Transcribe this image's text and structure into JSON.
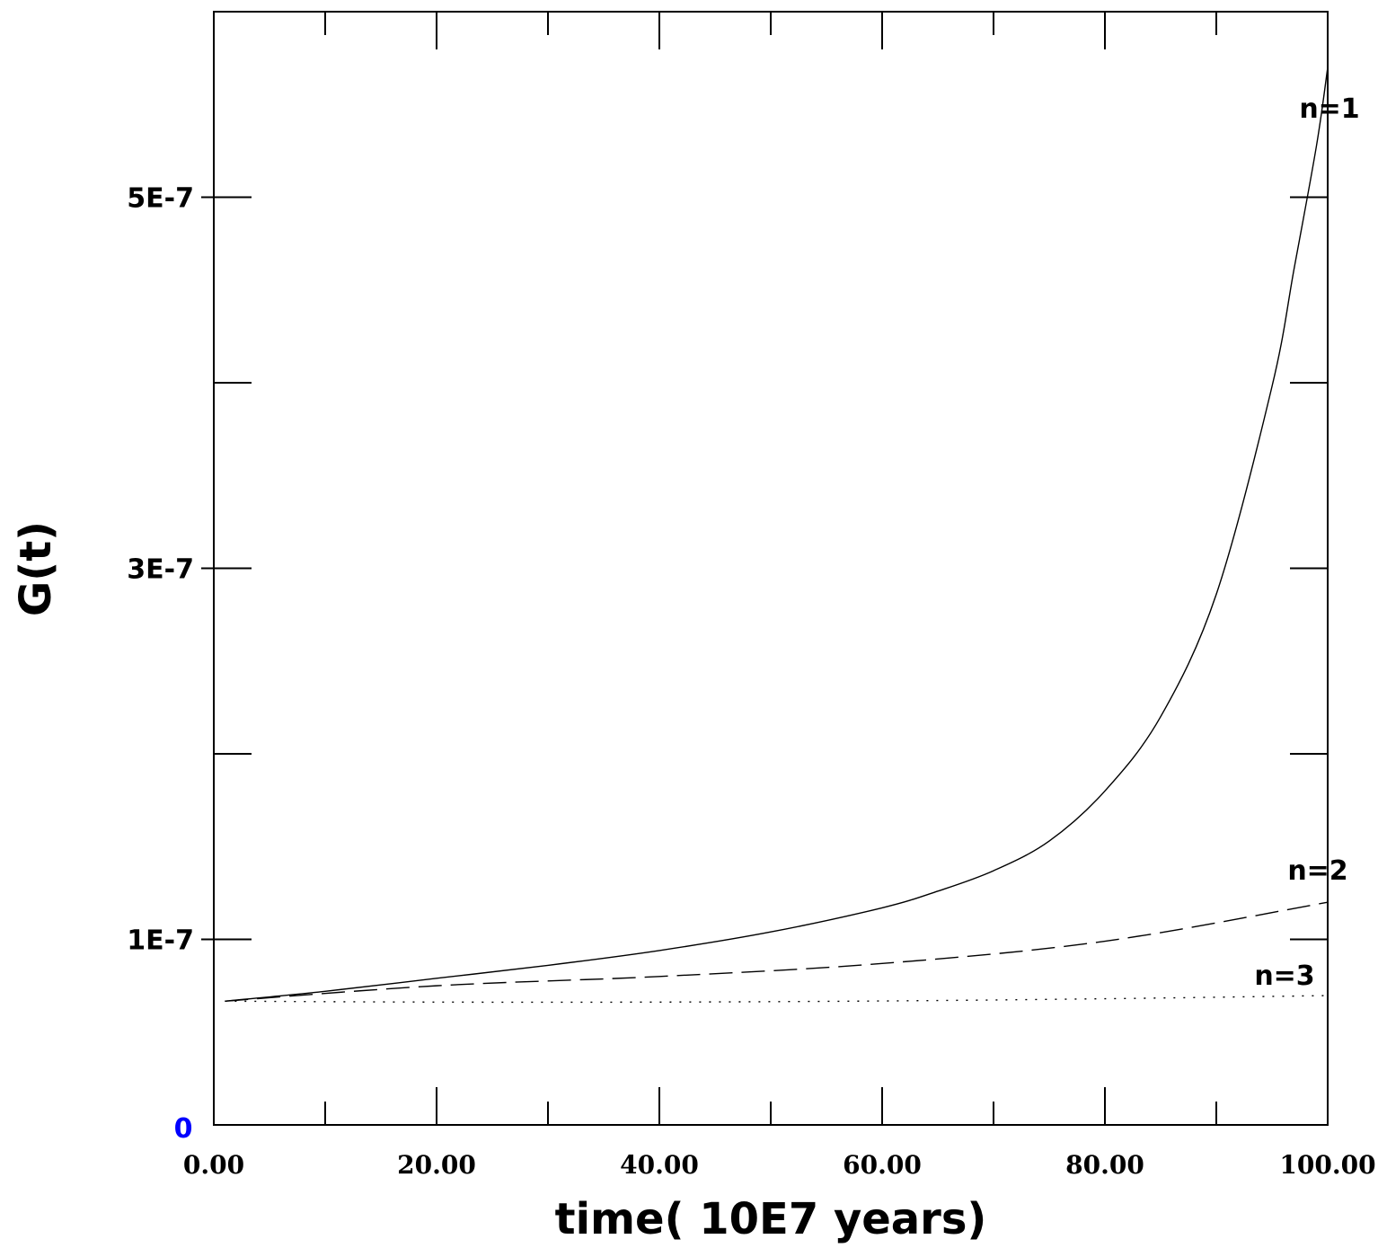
{
  "chart_data": {
    "type": "line",
    "xlabel": "time( 10E7 years)",
    "ylabel": "G(t)",
    "xlim": [
      0,
      100
    ],
    "ylim": [
      0,
      6e-07
    ],
    "x_ticks": [
      0,
      20,
      40,
      60,
      80,
      100
    ],
    "x_tick_labels": [
      "0.00",
      "20.00",
      "40.00",
      "60.00",
      "80.00",
      "100.00"
    ],
    "y_ticks": [
      0,
      1e-07,
      3e-07,
      5e-07
    ],
    "y_tick_labels": [
      "0",
      "1E-7",
      "3E-7",
      "5E-7"
    ],
    "zero_label_color": "#0000ff",
    "grid": false,
    "series": [
      {
        "name": "n=1",
        "style": "solid",
        "x": [
          1,
          10,
          20,
          30,
          40,
          50,
          60,
          65,
          70,
          75,
          80,
          85,
          90,
          95,
          97,
          99,
          100
        ],
        "y": [
          6.67e-08,
          7.2e-08,
          7.9e-08,
          8.6e-08,
          9.4e-08,
          1.04e-07,
          1.17e-07,
          1.26e-07,
          1.37e-07,
          1.53e-07,
          1.8e-07,
          2.2e-07,
          2.86e-07,
          3.98e-07,
          4.62e-07,
          5.28e-07,
          5.7e-07
        ]
      },
      {
        "name": "n=2",
        "style": "dashed",
        "x": [
          1,
          20,
          40,
          60,
          80,
          100
        ],
        "y": [
          6.67e-08,
          7.5e-08,
          8e-08,
          8.7e-08,
          9.9e-08,
          1.2e-07
        ]
      },
      {
        "name": "n=3",
        "style": "dotted",
        "x": [
          1,
          20,
          40,
          60,
          80,
          100
        ],
        "y": [
          6.67e-08,
          6.62e-08,
          6.62e-08,
          6.68e-08,
          6.8e-08,
          6.97e-08
        ]
      }
    ]
  }
}
